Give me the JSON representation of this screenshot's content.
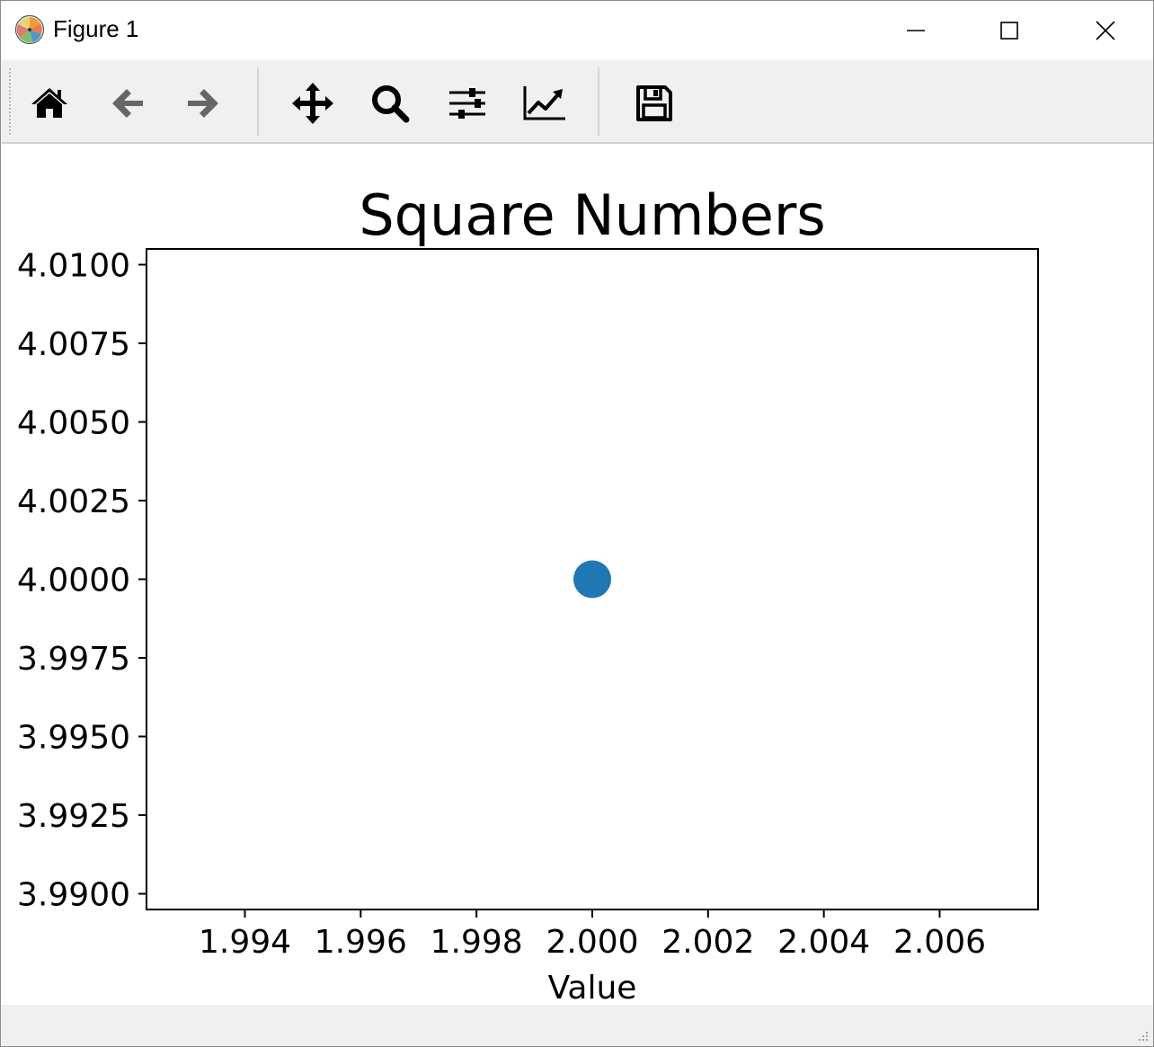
{
  "window": {
    "title": "Figure 1",
    "minimize_icon": "minimize-icon",
    "maximize_icon": "maximize-icon",
    "close_icon": "close-icon"
  },
  "toolbar": {
    "items": [
      {
        "name": "home",
        "icon": "home-icon"
      },
      {
        "name": "back",
        "icon": "arrow-left-icon"
      },
      {
        "name": "forward",
        "icon": "arrow-right-icon"
      },
      {
        "name": "pan",
        "icon": "move-icon"
      },
      {
        "name": "zoom",
        "icon": "magnifier-icon"
      },
      {
        "name": "configure-subplots",
        "icon": "sliders-icon"
      },
      {
        "name": "edit-axes",
        "icon": "line-chart-icon"
      },
      {
        "name": "save",
        "icon": "floppy-disk-icon"
      }
    ]
  },
  "status": {
    "text": ""
  },
  "colors": {
    "marker": "#1f77b4",
    "toolbar_bg": "#f0f0f0",
    "back_forward": "#666666"
  },
  "chart_data": {
    "type": "scatter",
    "title": "Square Numbers",
    "xlabel": "Value",
    "ylabel": "",
    "x": [
      2.0
    ],
    "y": [
      4.0
    ],
    "xlim": [
      1.9923,
      2.0077
    ],
    "ylim": [
      3.9895,
      4.0105
    ],
    "xticks": [
      1.994,
      1.996,
      1.998,
      2.0,
      2.002,
      2.004,
      2.006
    ],
    "xtick_labels": [
      "1.994",
      "1.996",
      "1.998",
      "2.000",
      "2.002",
      "2.004",
      "2.006"
    ],
    "yticks": [
      4.01,
      4.0075,
      4.005,
      4.0025,
      4.0,
      3.9975,
      3.995,
      3.9925,
      3.99
    ],
    "ytick_labels": [
      "4.0100",
      "4.0075",
      "4.0050",
      "4.0025",
      "4.0000",
      "3.9975",
      "3.9950",
      "3.9925",
      "3.9900"
    ],
    "grid": false,
    "legend": false
  }
}
